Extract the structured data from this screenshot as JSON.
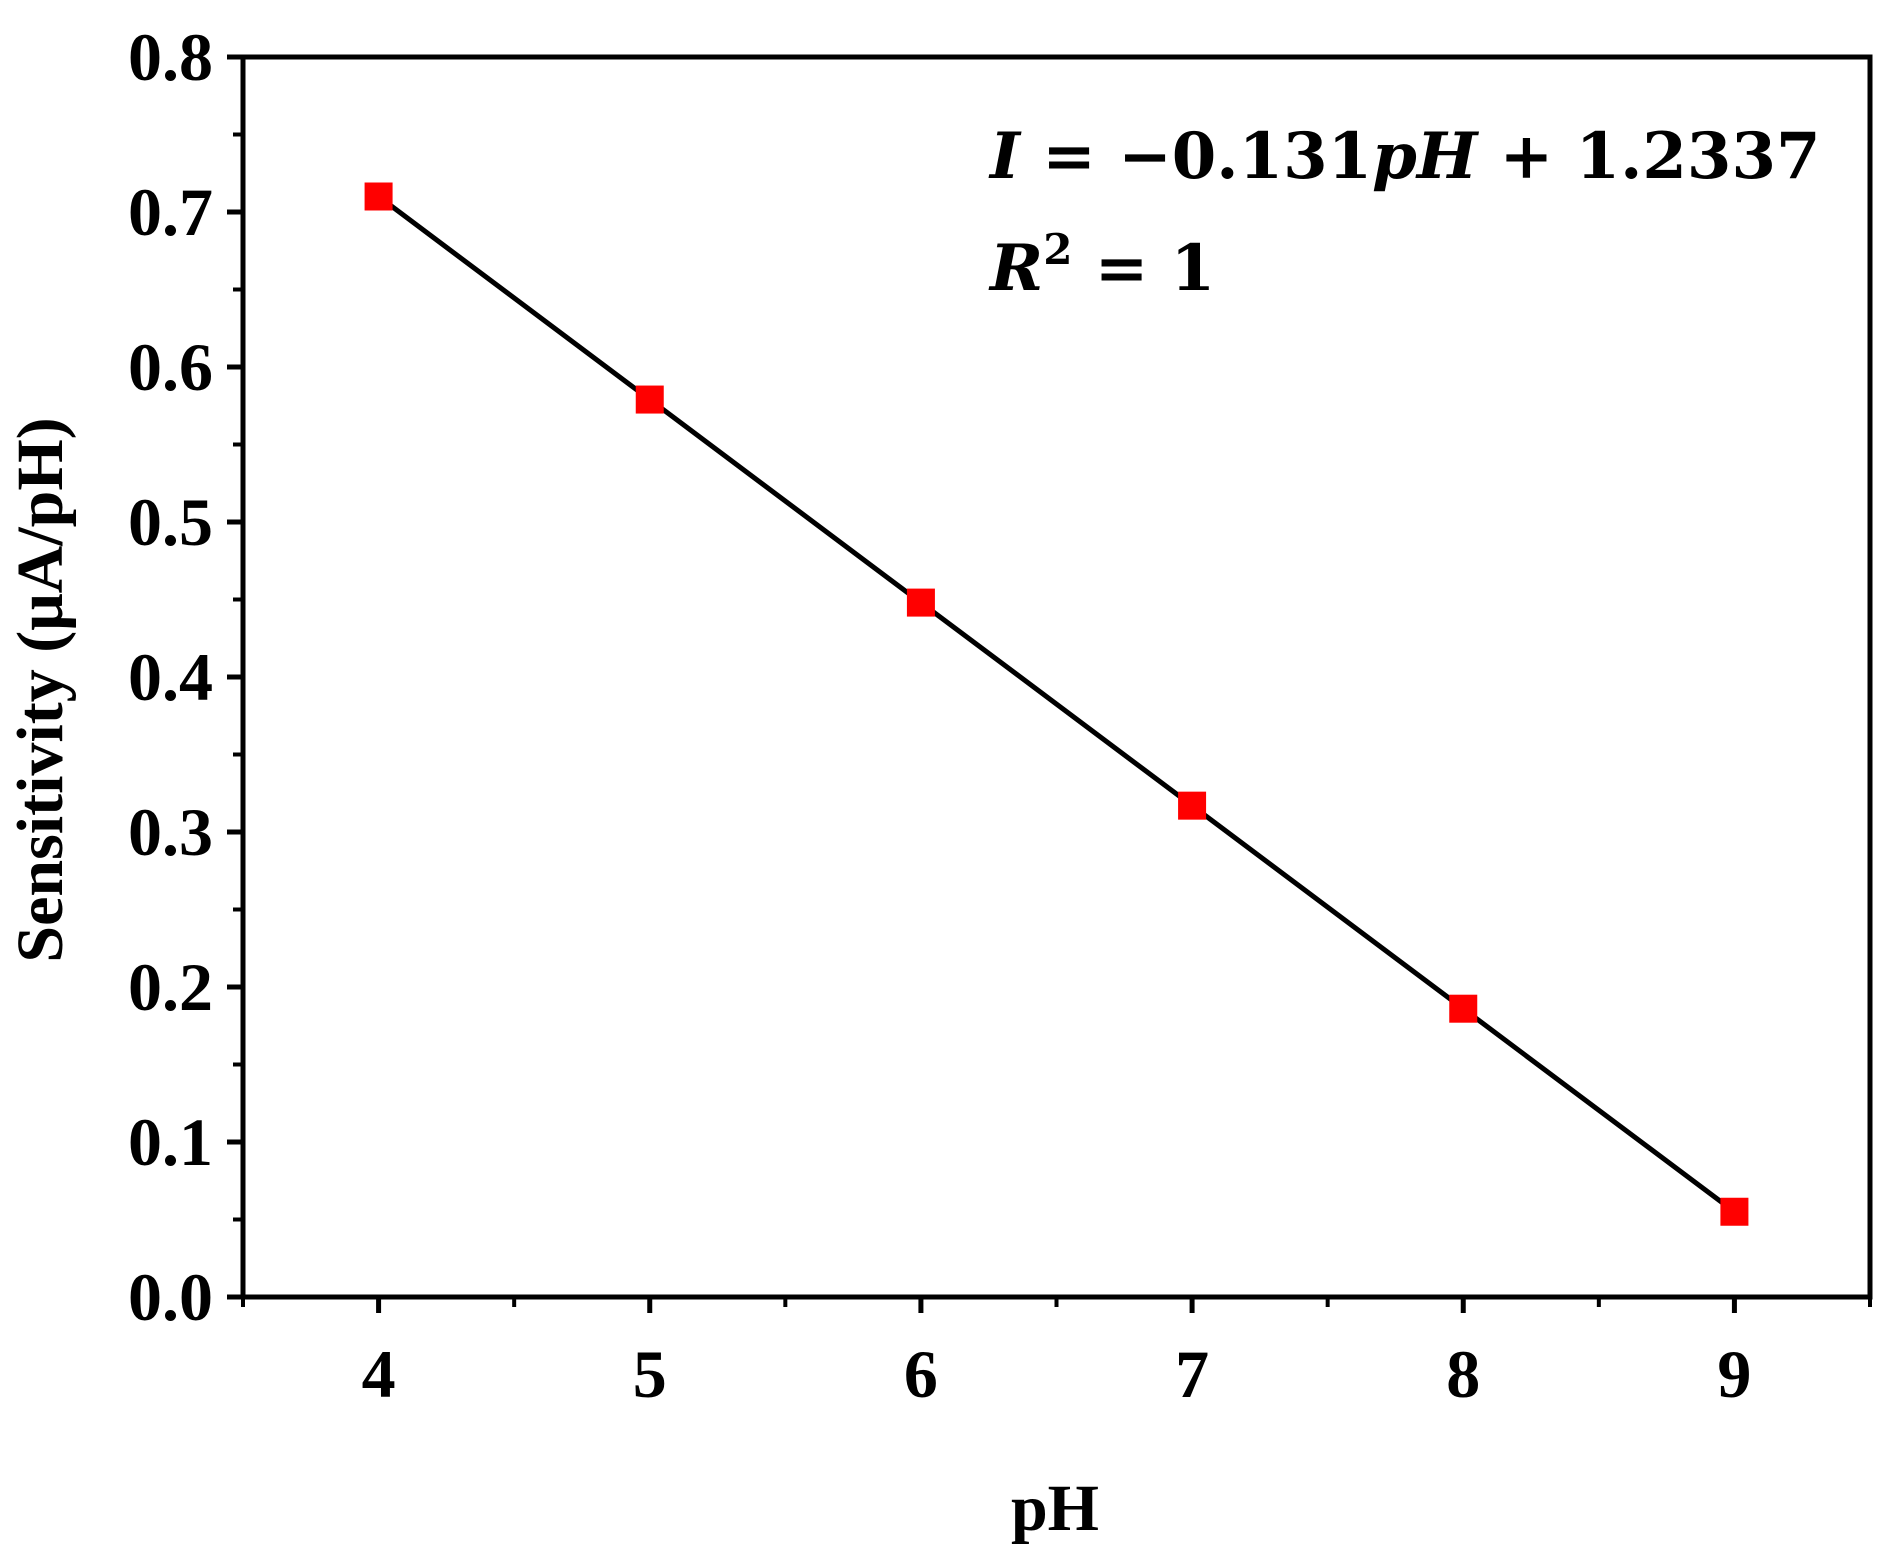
{
  "chart_data": {
    "type": "line",
    "xlabel": "pH",
    "ylabel": "Sensitivity (μA/pH)",
    "xlim": [
      3.5,
      9.5
    ],
    "ylim": [
      0.0,
      0.8
    ],
    "xticks": [
      "4",
      "5",
      "6",
      "7",
      "8",
      "9"
    ],
    "yticks": [
      "0.0",
      "0.1",
      "0.2",
      "0.3",
      "0.4",
      "0.5",
      "0.6",
      "0.7",
      "0.8"
    ],
    "series": [
      {
        "x": [
          4,
          5,
          6,
          7,
          8,
          9
        ],
        "y": [
          0.71,
          0.579,
          0.448,
          0.317,
          0.186,
          0.055
        ],
        "marker": "square",
        "marker_color": "#ff0000",
        "line_color": "#000000"
      }
    ],
    "annotations": {
      "equation": "I = −0.131pH + 1.2337",
      "r_squared": "R2 = 1"
    },
    "grid": false,
    "legend": "none"
  }
}
